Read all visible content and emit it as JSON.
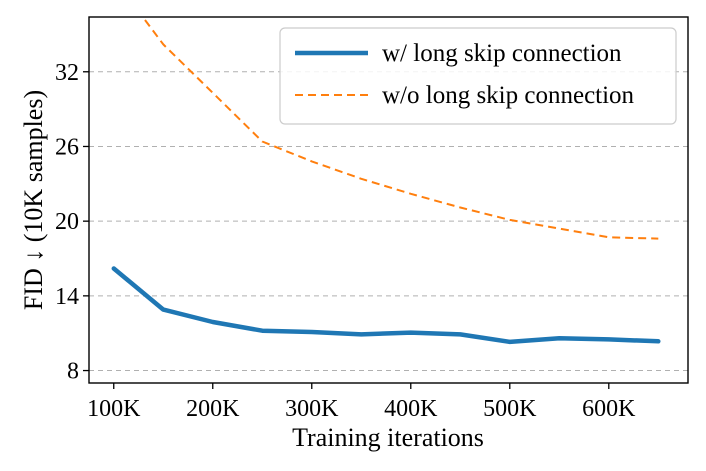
{
  "chart_data": {
    "type": "line",
    "xlabel": "Training iterations",
    "ylabel": "FID ↓ (10K samples)",
    "x": [
      100,
      150,
      200,
      250,
      300,
      350,
      400,
      450,
      500,
      550,
      600,
      650
    ],
    "xticks": [
      100,
      200,
      300,
      400,
      500,
      600
    ],
    "xtick_labels": [
      "100K",
      "200K",
      "300K",
      "400K",
      "500K",
      "600K"
    ],
    "yticks": [
      8,
      14,
      20,
      26,
      32
    ],
    "ytick_labels": [
      "8",
      "14",
      "20",
      "26",
      "32"
    ],
    "xlim": [
      75,
      680
    ],
    "ylim": [
      7.0,
      36.4
    ],
    "grid": "horizontal dashed",
    "legend_position": "top-right",
    "series": [
      {
        "name": "w/ long skip connection",
        "color": "#1f77b4",
        "line_style": "solid",
        "x": [
          100,
          150,
          200,
          250,
          300,
          350,
          400,
          450,
          500,
          550,
          600,
          650
        ],
        "values": [
          16.2,
          12.9,
          11.9,
          11.2,
          11.1,
          10.9,
          11.05,
          10.9,
          10.3,
          10.6,
          10.5,
          10.35
        ]
      },
      {
        "name": "w/o long skip connection",
        "color": "#ff7f0e",
        "line_style": "dashed",
        "x": [
          100,
          150,
          200,
          250,
          300,
          350,
          400,
          450,
          500,
          550,
          600,
          650
        ],
        "values": [
          39.5,
          34.2,
          30.3,
          26.4,
          24.8,
          23.4,
          22.2,
          21.1,
          20.1,
          19.4,
          18.7,
          18.6
        ]
      }
    ]
  }
}
